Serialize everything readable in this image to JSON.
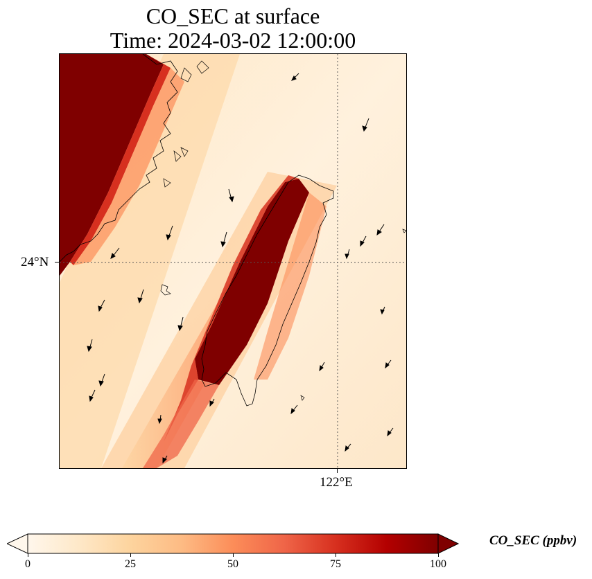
{
  "title": {
    "line1": "CO_SEC at surface",
    "line2": "Time: 2024-03-02 12:00:00"
  },
  "map": {
    "gridlines": {
      "lat_label": "24°N",
      "lon_label": "122°E"
    },
    "colormap": "OrRd",
    "colors": {
      "low": "#fff7ec",
      "mid": "#fdbb84",
      "high": "#d7301f",
      "max": "#7f0000"
    }
  },
  "colorbar": {
    "label": "CO_SEC (ppbv)",
    "ticks": [
      "0",
      "25",
      "50",
      "75",
      "100"
    ],
    "min": 0,
    "max": 100,
    "extend": "both"
  }
}
